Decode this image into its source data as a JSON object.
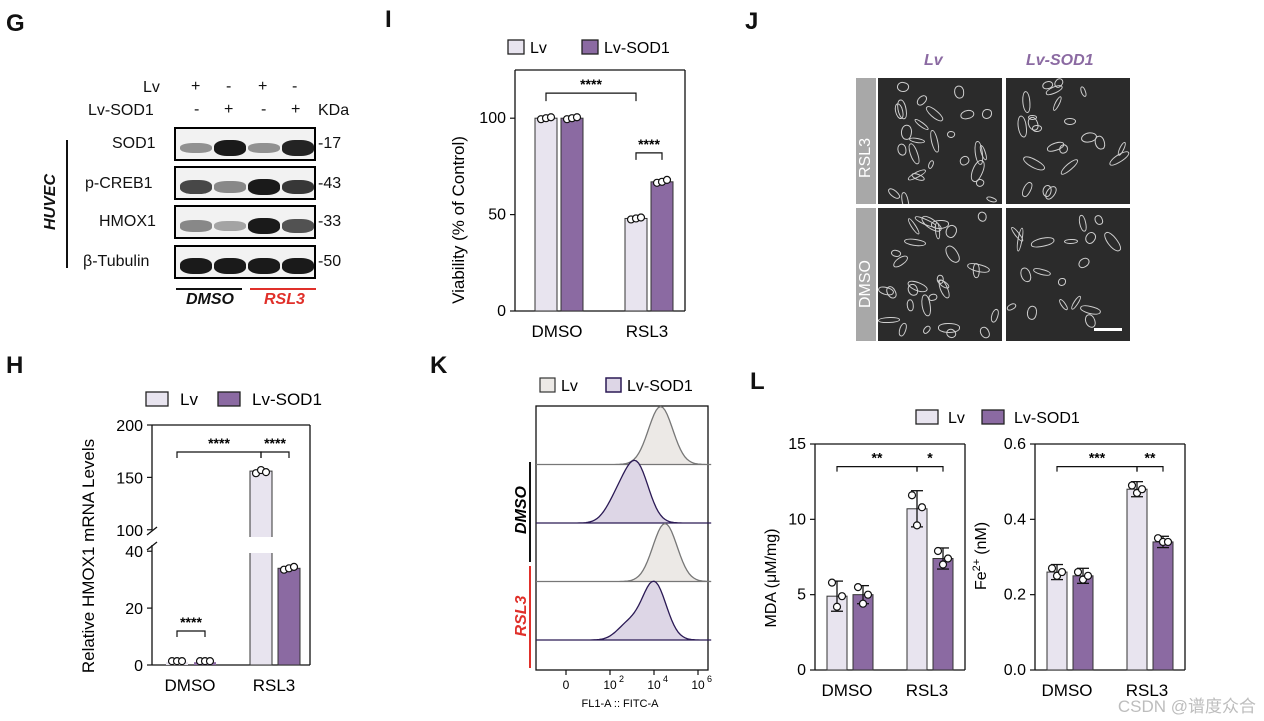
{
  "panels": {
    "G": "G",
    "H": "H",
    "I": "I",
    "J": "J",
    "K": "K",
    "L": "L"
  },
  "western_blot": {
    "lv_label": "Lv",
    "lvsod1_label": "Lv-SOD1",
    "kda_label": "KDa",
    "lv_signs": [
      "+",
      "-",
      "+",
      "-"
    ],
    "lvsod1_signs": [
      "-",
      "+",
      "-",
      "+"
    ],
    "cell_line": "HUVEC",
    "proteins": [
      "SOD1",
      "p-CREB1",
      "HMOX1",
      "β-Tubulin"
    ],
    "sizes": [
      "-17",
      "-43",
      "-33",
      "-50"
    ],
    "groups": [
      "DMSO",
      "RSL3"
    ],
    "band_intensity": [
      [
        0.35,
        1.0,
        0.35,
        0.95
      ],
      [
        0.75,
        0.4,
        1.0,
        0.85
      ],
      [
        0.4,
        0.25,
        1.0,
        0.7
      ],
      [
        1.0,
        1.0,
        1.0,
        1.0
      ]
    ]
  },
  "microscopy": {
    "col_labels": [
      "Lv",
      "Lv-SOD1"
    ],
    "row_labels": [
      "RSL3",
      "DMSO"
    ]
  },
  "watermark": "CSDN @谱度众合",
  "chart_data": [
    {
      "id": "H",
      "type": "bar",
      "ylabel": "Relative HMOX1 mRNA Levels",
      "categories": [
        "DMSO",
        "RSL3"
      ],
      "series": [
        {
          "name": "Lv",
          "values": [
            1.0,
            156
          ],
          "points": [
            [
              1.0,
              1.0,
              1.0
            ],
            [
              154,
              157,
              155
            ]
          ]
        },
        {
          "name": "Lv-SOD1",
          "values": [
            1.0,
            34
          ],
          "points": [
            [
              1.0,
              1.0,
              1.0
            ],
            [
              33.5,
              34,
              34.5
            ]
          ]
        }
      ],
      "axis_break": [
        45,
        95
      ],
      "ticks_lower": [
        "0",
        "20",
        "40"
      ],
      "ticks_upper": [
        "100",
        "150",
        "200"
      ],
      "significance": [
        {
          "label": "****",
          "between": "DMSO-Lv vs DMSO-Lv-SOD1"
        },
        {
          "label": "****",
          "between": "DMSO-Lv vs RSL3-Lv"
        },
        {
          "label": "****",
          "between": "RSL3-Lv vs RSL3-Lv-SOD1"
        }
      ]
    },
    {
      "id": "I",
      "type": "bar",
      "ylabel": "Viability (% of Control)",
      "categories": [
        "DMSO",
        "RSL3"
      ],
      "ylim": [
        0,
        125
      ],
      "yticks": [
        "0",
        "50",
        "100"
      ],
      "series": [
        {
          "name": "Lv",
          "values": [
            100,
            48
          ],
          "points": [
            [
              99.5,
              100,
              100.5
            ],
            [
              47.5,
              48,
              48.5
            ]
          ]
        },
        {
          "name": "Lv-SOD1",
          "values": [
            100,
            67
          ],
          "points": [
            [
              99.5,
              100,
              100.5
            ],
            [
              66.5,
              67,
              68
            ]
          ]
        }
      ],
      "significance": [
        {
          "label": "****",
          "between": "DMSO-Lv vs RSL3-Lv"
        },
        {
          "label": "****",
          "between": "RSL3-Lv vs RSL3-Lv-SOD1"
        }
      ]
    },
    {
      "id": "K",
      "type": "area",
      "xlabel": "FL1-A :: FITC-A",
      "xticks": [
        "0",
        "10",
        "10",
        "10"
      ],
      "xtick_exponents": [
        "",
        "2",
        "4",
        "6"
      ],
      "legend": [
        "Lv",
        "Lv-SOD1"
      ],
      "row_labels": [
        "DMSO",
        "RSL3"
      ],
      "peak_log_position": {
        "DMSO_Lv": 4.3,
        "DMSO_Lv-SOD1": 3.2,
        "RSL3_Lv": 4.5,
        "RSL3_Lv-SOD1": 4.0
      }
    },
    {
      "id": "L-MDA",
      "type": "bar",
      "ylabel": "MDA (μM/mg)",
      "categories": [
        "DMSO",
        "RSL3"
      ],
      "ylim": [
        0,
        15
      ],
      "yticks": [
        "0",
        "5",
        "10",
        "15"
      ],
      "series": [
        {
          "name": "Lv",
          "values": [
            4.9,
            10.7
          ],
          "errors": [
            1.0,
            1.2
          ],
          "points": [
            [
              5.8,
              4.2,
              4.9
            ],
            [
              11.6,
              9.6,
              10.8
            ]
          ]
        },
        {
          "name": "Lv-SOD1",
          "values": [
            5.0,
            7.4
          ],
          "errors": [
            0.6,
            0.7
          ],
          "points": [
            [
              5.5,
              4.4,
              5.0
            ],
            [
              7.9,
              7.0,
              7.4
            ]
          ]
        }
      ],
      "significance": [
        {
          "label": "**",
          "between": "DMSO-Lv vs RSL3-Lv"
        },
        {
          "label": "*",
          "between": "RSL3-Lv vs RSL3-Lv-SOD1"
        }
      ]
    },
    {
      "id": "L-Fe",
      "type": "bar",
      "ylabel": "Fe2+ (nM)",
      "ylabel_main": "Fe",
      "ylabel_sup": "2+",
      "ylabel_unit": "(nM)",
      "categories": [
        "DMSO",
        "RSL3"
      ],
      "ylim": [
        0,
        0.6
      ],
      "yticks": [
        "0.0",
        "0.2",
        "0.4",
        "0.6"
      ],
      "series": [
        {
          "name": "Lv",
          "values": [
            0.26,
            0.48
          ],
          "errors": [
            0.02,
            0.02
          ],
          "points": [
            [
              0.27,
              0.25,
              0.26
            ],
            [
              0.49,
              0.47,
              0.48
            ]
          ]
        },
        {
          "name": "Lv-SOD1",
          "values": [
            0.25,
            0.34
          ],
          "errors": [
            0.02,
            0.015
          ],
          "points": [
            [
              0.26,
              0.24,
              0.25
            ],
            [
              0.35,
              0.34,
              0.34
            ]
          ]
        }
      ],
      "significance": [
        {
          "label": "***",
          "between": "DMSO-Lv vs RSL3-Lv"
        },
        {
          "label": "**",
          "between": "RSL3-Lv vs RSL3-Lv-SOD1"
        }
      ]
    }
  ],
  "colors": {
    "lv": "#e8e4ef",
    "lvsod1": "#8b6aa2",
    "rsl3_red": "#e0302a"
  }
}
